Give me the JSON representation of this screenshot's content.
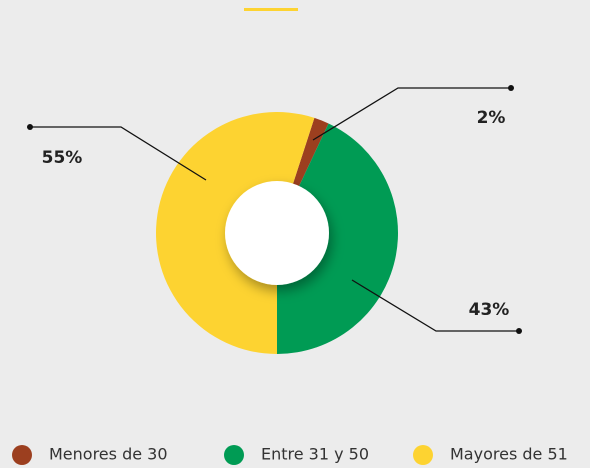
{
  "chart_data": {
    "type": "donut",
    "categories": [
      "Menores de 30",
      "Entre 31 y 50",
      "Mayores de 51"
    ],
    "values": [
      2,
      43,
      55
    ],
    "value_labels": [
      "2%",
      "43%",
      "55%"
    ],
    "colors": [
      "#9c3f1f",
      "#009b54",
      "#fdd331"
    ]
  }
}
